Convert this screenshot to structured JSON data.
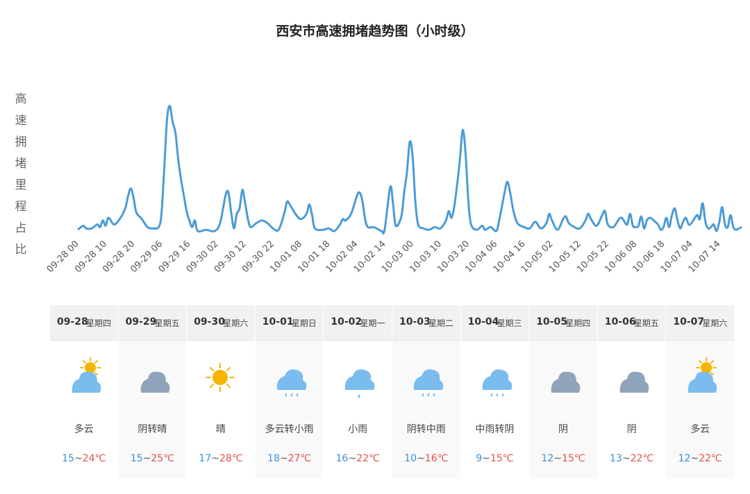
{
  "title": "西安市高速拥堵趋势图（小时级）",
  "ylabel_chars": [
    "高",
    "速",
    "拥",
    "堵",
    "里",
    "程",
    "占",
    "比"
  ],
  "colors": {
    "line": "#4a9bd6",
    "sun": "#f5b400",
    "cloud": "#8fa4ba",
    "rain": "#7bbcee",
    "lo_temp": "#3b8fd9",
    "hi_temp": "#e0504a"
  },
  "chart_data": {
    "type": "line",
    "title": "西安市高速拥堵趋势图（小时级）",
    "xlabel": "",
    "ylabel": "高速拥堵里程占比",
    "x_unit": "hour",
    "x_start": "09-28 00",
    "x_end": "10-07 23",
    "tick_labels": [
      "09-28 00",
      "09-28 10",
      "09-28 20",
      "09-29 06",
      "09-29 16",
      "09-30 02",
      "09-30 12",
      "09-30 22",
      "10-01 08",
      "10-01 18",
      "10-02 04",
      "10-02 14",
      "10-03 00",
      "10-03 10",
      "10-03 20",
      "10-04 06",
      "10-04 16",
      "10-05 02",
      "10-05 12",
      "10-05 22",
      "10-06 08",
      "10-06 18",
      "10-07 04",
      "10-07 14"
    ],
    "tick_hours": [
      0,
      10,
      20,
      30,
      40,
      50,
      60,
      70,
      80,
      90,
      100,
      110,
      120,
      130,
      140,
      150,
      160,
      170,
      180,
      190,
      200,
      210,
      220,
      230
    ],
    "ylim": [
      0,
      100
    ],
    "series": [
      {
        "points": [
          [
            0,
            2
          ],
          [
            2,
            5
          ],
          [
            3,
            3
          ],
          [
            5,
            3
          ],
          [
            7,
            6
          ],
          [
            8,
            4
          ],
          [
            9,
            9
          ],
          [
            10,
            5
          ],
          [
            11,
            11
          ],
          [
            13,
            6
          ],
          [
            15,
            10
          ],
          [
            17,
            18
          ],
          [
            18,
            27
          ],
          [
            19,
            33
          ],
          [
            20,
            26
          ],
          [
            21,
            15
          ],
          [
            23,
            10
          ],
          [
            25,
            4
          ],
          [
            27,
            3
          ],
          [
            29,
            4
          ],
          [
            30,
            14
          ],
          [
            31,
            48
          ],
          [
            32,
            85
          ],
          [
            33,
            95
          ],
          [
            34,
            83
          ],
          [
            35,
            75
          ],
          [
            36,
            55
          ],
          [
            37,
            40
          ],
          [
            38,
            28
          ],
          [
            39,
            16
          ],
          [
            40,
            9
          ],
          [
            41,
            4
          ],
          [
            42,
            9
          ],
          [
            43,
            1
          ],
          [
            46,
            2
          ],
          [
            49,
            1
          ],
          [
            51,
            7
          ],
          [
            53,
            28
          ],
          [
            54,
            30
          ],
          [
            55,
            15
          ],
          [
            56,
            3
          ],
          [
            57,
            14
          ],
          [
            58,
            18
          ],
          [
            59,
            32
          ],
          [
            60,
            22
          ],
          [
            61,
            10
          ],
          [
            62,
            4
          ],
          [
            64,
            7
          ],
          [
            66,
            9
          ],
          [
            68,
            7
          ],
          [
            70,
            3
          ],
          [
            72,
            2
          ],
          [
            74,
            14
          ],
          [
            75,
            23
          ],
          [
            76,
            21
          ],
          [
            78,
            14
          ],
          [
            80,
            10
          ],
          [
            82,
            14
          ],
          [
            83,
            21
          ],
          [
            84,
            13
          ],
          [
            85,
            3
          ],
          [
            88,
            2
          ],
          [
            90,
            3
          ],
          [
            92,
            1
          ],
          [
            94,
            6
          ],
          [
            95,
            10
          ],
          [
            96,
            9
          ],
          [
            98,
            14
          ],
          [
            100,
            27
          ],
          [
            101,
            30
          ],
          [
            102,
            24
          ],
          [
            103,
            10
          ],
          [
            104,
            4
          ],
          [
            106,
            4
          ],
          [
            108,
            2
          ],
          [
            109,
            1
          ],
          [
            110,
            2
          ],
          [
            112,
            34
          ],
          [
            113,
            22
          ],
          [
            114,
            5
          ],
          [
            116,
            12
          ],
          [
            117,
            30
          ],
          [
            118,
            45
          ],
          [
            119,
            68
          ],
          [
            120,
            58
          ],
          [
            121,
            24
          ],
          [
            122,
            6
          ],
          [
            124,
            3
          ],
          [
            126,
            2
          ],
          [
            128,
            4
          ],
          [
            130,
            3
          ],
          [
            132,
            9
          ],
          [
            133,
            16
          ],
          [
            134,
            11
          ],
          [
            135,
            20
          ],
          [
            136,
            36
          ],
          [
            137,
            55
          ],
          [
            138,
            77
          ],
          [
            139,
            60
          ],
          [
            140,
            24
          ],
          [
            141,
            6
          ],
          [
            143,
            2
          ],
          [
            145,
            5
          ],
          [
            146,
            2
          ],
          [
            148,
            4
          ],
          [
            150,
            1
          ],
          [
            151,
            8
          ],
          [
            153,
            30
          ],
          [
            154,
            38
          ],
          [
            155,
            30
          ],
          [
            156,
            18
          ],
          [
            157,
            10
          ],
          [
            158,
            6
          ],
          [
            160,
            4
          ],
          [
            162,
            3
          ],
          [
            164,
            8
          ],
          [
            166,
            3
          ],
          [
            168,
            7
          ],
          [
            169,
            14
          ],
          [
            170,
            9
          ],
          [
            172,
            2
          ],
          [
            174,
            10
          ],
          [
            175,
            12
          ],
          [
            176,
            7
          ],
          [
            178,
            4
          ],
          [
            180,
            3
          ],
          [
            182,
            9
          ],
          [
            183,
            14
          ],
          [
            184,
            10
          ],
          [
            186,
            5
          ],
          [
            188,
            13
          ],
          [
            189,
            16
          ],
          [
            190,
            6
          ],
          [
            192,
            4
          ],
          [
            194,
            10
          ],
          [
            195,
            11
          ],
          [
            196,
            8
          ],
          [
            197,
            6
          ],
          [
            198,
            14
          ],
          [
            199,
            5
          ],
          [
            200,
            4
          ],
          [
            201,
            5
          ],
          [
            202,
            12
          ],
          [
            203,
            3
          ],
          [
            204,
            9
          ],
          [
            205,
            11
          ],
          [
            206,
            10
          ],
          [
            207,
            8
          ],
          [
            208,
            6
          ],
          [
            209,
            2
          ],
          [
            210,
            4
          ],
          [
            211,
            11
          ],
          [
            212,
            4
          ],
          [
            213,
            13
          ],
          [
            214,
            18
          ],
          [
            215,
            9
          ],
          [
            216,
            3
          ],
          [
            217,
            8
          ],
          [
            218,
            11
          ],
          [
            219,
            6
          ],
          [
            220,
            7
          ],
          [
            222,
            13
          ],
          [
            223,
            10
          ],
          [
            224,
            22
          ],
          [
            225,
            8
          ],
          [
            226,
            3
          ],
          [
            227,
            4
          ],
          [
            228,
            6
          ],
          [
            229,
            1
          ],
          [
            230,
            8
          ],
          [
            231,
            19
          ],
          [
            232,
            6
          ],
          [
            233,
            4
          ],
          [
            234,
            13
          ],
          [
            235,
            4
          ],
          [
            236,
            2
          ],
          [
            237,
            3
          ],
          [
            238,
            4
          ]
        ]
      }
    ]
  },
  "forecast": [
    {
      "date": "09-28",
      "weekday": "星期四",
      "desc": "多云",
      "low": "15",
      "high": "24",
      "unit": "℃",
      "icon": "partly-cloudy-icon"
    },
    {
      "date": "09-29",
      "weekday": "星期五",
      "desc": "阴转晴",
      "low": "15",
      "high": "25",
      "unit": "℃",
      "icon": "overcast-icon"
    },
    {
      "date": "09-30",
      "weekday": "星期六",
      "desc": "晴",
      "low": "17",
      "high": "28",
      "unit": "℃",
      "icon": "sunny-icon"
    },
    {
      "date": "10-01",
      "weekday": "星期日",
      "desc": "多云转小雨",
      "low": "18",
      "high": "27",
      "unit": "℃",
      "icon": "rain-icon"
    },
    {
      "date": "10-02",
      "weekday": "星期一",
      "desc": "小雨",
      "low": "16",
      "high": "22",
      "unit": "℃",
      "icon": "light-rain-icon"
    },
    {
      "date": "10-03",
      "weekday": "星期二",
      "desc": "阴转中雨",
      "low": "10",
      "high": "16",
      "unit": "℃",
      "icon": "rain-icon"
    },
    {
      "date": "10-04",
      "weekday": "星期三",
      "desc": "中雨转阴",
      "low": "9",
      "high": "15",
      "unit": "℃",
      "icon": "rain-icon"
    },
    {
      "date": "10-05",
      "weekday": "星期四",
      "desc": "阴",
      "low": "12",
      "high": "15",
      "unit": "℃",
      "icon": "overcast-icon"
    },
    {
      "date": "10-06",
      "weekday": "星期五",
      "desc": "阴",
      "low": "13",
      "high": "22",
      "unit": "℃",
      "icon": "overcast-icon"
    },
    {
      "date": "10-07",
      "weekday": "星期六",
      "desc": "多云",
      "low": "12",
      "high": "22",
      "unit": "℃",
      "icon": "partly-cloudy-icon"
    }
  ]
}
